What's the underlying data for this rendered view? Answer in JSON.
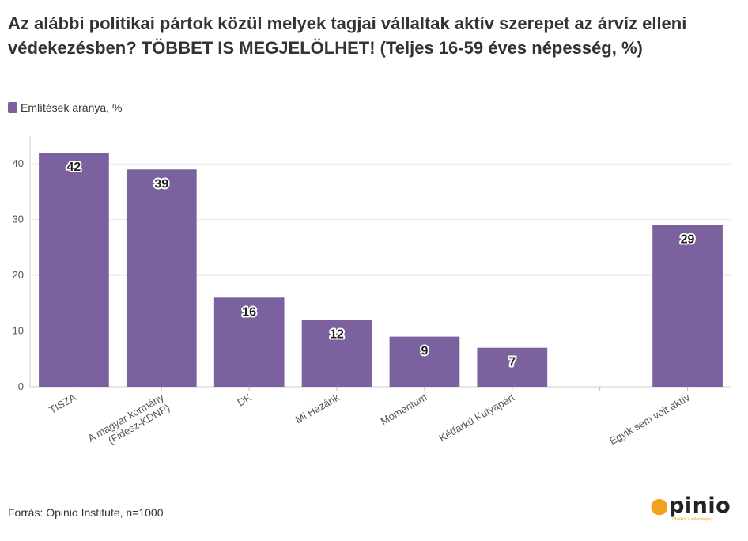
{
  "title": "Az alábbi politikai pártok közül melyek tagjai vállaltak aktív szerepet az árvíz elleni védekezésben? TÖBBET IS MEGJELÖLHET! (Teljes 16-59 éves népesség, %)",
  "legend_label": "Említések aránya, %",
  "source": "Forrás: Opinio Institute, n=1000",
  "logo": {
    "word": "opinio",
    "tagline": "Objektív a véleményed"
  },
  "colors": {
    "bar": "#7b619e",
    "grid": "#e8e8e8"
  },
  "chart_data": {
    "type": "bar",
    "categories": [
      [
        "TISZA"
      ],
      [
        "A magyar kormány",
        "(Fidesz-KDNP)"
      ],
      [
        "DK"
      ],
      [
        "Mi Hazánk"
      ],
      [
        "Momentum"
      ],
      [
        "Kétfarkú Kutyapárt"
      ],
      [
        ""
      ],
      [
        "Egyik sem volt aktív"
      ]
    ],
    "series": [
      {
        "name": "Említések aránya, %",
        "values": [
          42,
          39,
          16,
          12,
          9,
          7,
          null,
          29
        ]
      }
    ],
    "ylim": [
      0,
      45
    ],
    "yticks": [
      0,
      10,
      20,
      30,
      40
    ],
    "grid": true,
    "legend": "top-left"
  }
}
